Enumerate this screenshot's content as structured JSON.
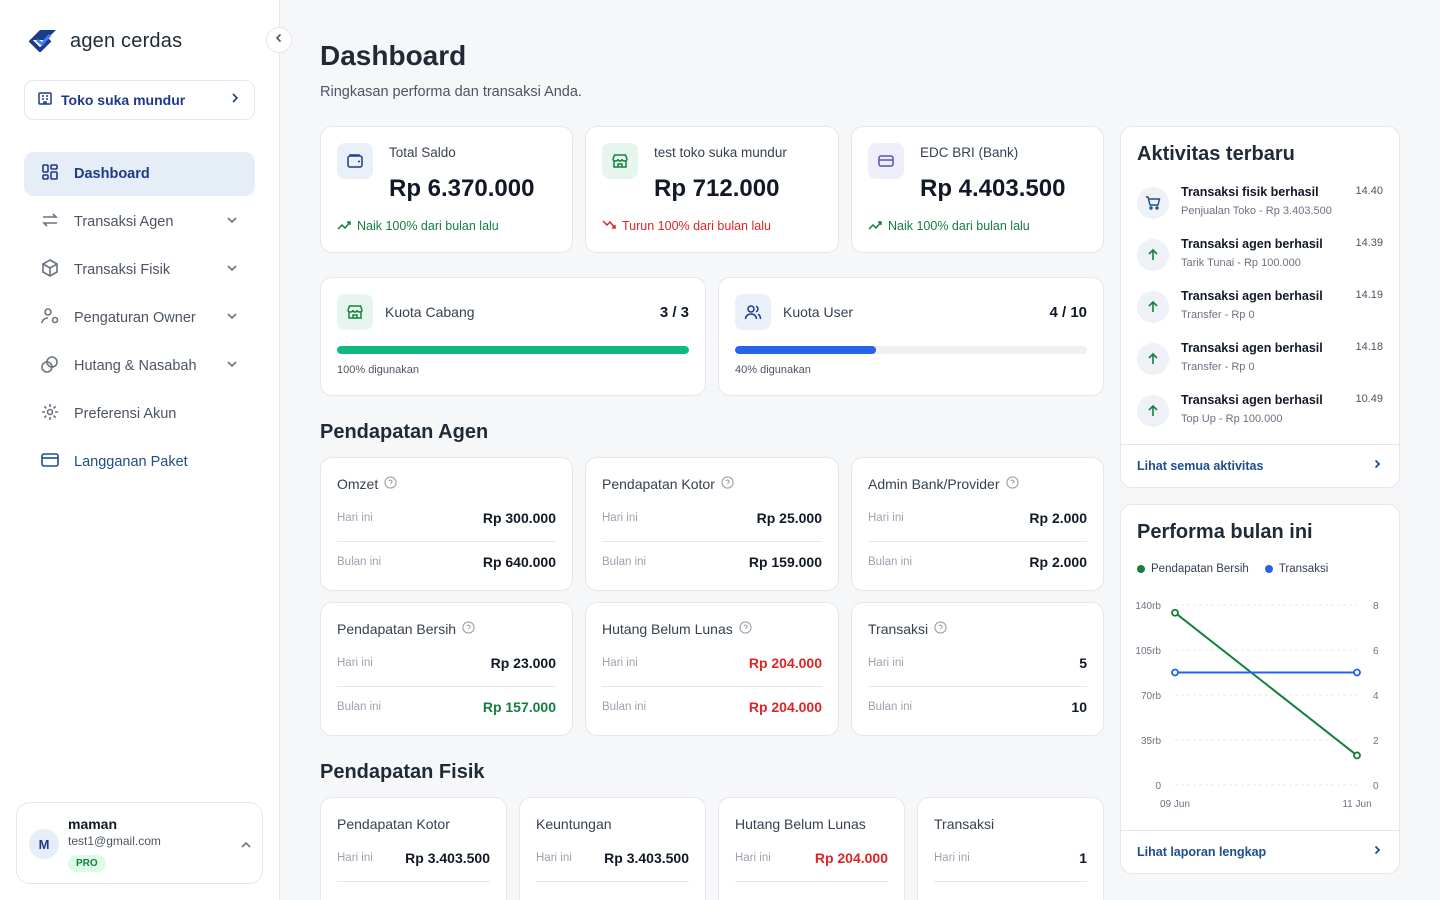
{
  "brand": {
    "name": "agen cerdas"
  },
  "store": {
    "label": "Toko suka mundur"
  },
  "nav": {
    "items": [
      {
        "label": "Dashboard",
        "icon": "grid-icon"
      },
      {
        "label": "Transaksi Agen",
        "icon": "swap-icon"
      },
      {
        "label": "Transaksi Fisik",
        "icon": "box-icon"
      },
      {
        "label": "Pengaturan Owner",
        "icon": "user-cog-icon"
      },
      {
        "label": "Hutang & Nasabah",
        "icon": "coins-icon"
      },
      {
        "label": "Preferensi Akun",
        "icon": "gear-icon"
      },
      {
        "label": "Langganan Paket",
        "icon": "card-icon"
      }
    ]
  },
  "user": {
    "initial": "M",
    "name": "maman",
    "email": "test1@gmail.com",
    "plan": "PRO"
  },
  "header": {
    "title": "Dashboard",
    "subtitle": "Ringkasan performa dan transaksi Anda."
  },
  "stats": [
    {
      "title": "Total Saldo",
      "value": "Rp 6.370.000",
      "trend": "Naik 100% dari bulan lalu"
    },
    {
      "title": "test toko suka mundur",
      "value": "Rp 712.000",
      "trend": "Turun 100% dari bulan lalu"
    },
    {
      "title": "EDC BRI (Bank)",
      "value": "Rp 4.403.500",
      "trend": "Naik 100% dari bulan lalu"
    }
  ],
  "quota": [
    {
      "title": "Kuota Cabang",
      "count": "3 / 3",
      "used": "100% digunakan",
      "fraction": 1.0
    },
    {
      "title": "Kuota User",
      "count": "4 / 10",
      "used": "40% digunakan",
      "fraction": 0.4
    }
  ],
  "agen": {
    "title": "Pendapatan Agen",
    "cards": [
      {
        "title": "Omzet",
        "today_label": "Hari ini",
        "today": "Rp 300.000",
        "month_label": "Bulan ini",
        "month": "Rp 640.000"
      },
      {
        "title": "Pendapatan Kotor",
        "today_label": "Hari ini",
        "today": "Rp 25.000",
        "month_label": "Bulan ini",
        "month": "Rp 159.000"
      },
      {
        "title": "Admin Bank/Provider",
        "today_label": "Hari ini",
        "today": "Rp 2.000",
        "month_label": "Bulan ini",
        "month": "Rp 2.000"
      },
      {
        "title": "Pendapatan Bersih",
        "today_label": "Hari ini",
        "today": "Rp 23.000",
        "month_label": "Bulan ini",
        "month": "Rp 157.000"
      },
      {
        "title": "Hutang Belum Lunas",
        "today_label": "Hari ini",
        "today": "Rp 204.000",
        "month_label": "Bulan ini",
        "month": "Rp 204.000"
      },
      {
        "title": "Transaksi",
        "today_label": "Hari ini",
        "today": "5",
        "month_label": "Bulan ini",
        "month": "10"
      }
    ]
  },
  "fisik": {
    "title": "Pendapatan Fisik",
    "cards": [
      {
        "title": "Pendapatan Kotor",
        "today_label": "Hari ini",
        "today": "Rp 3.403.500"
      },
      {
        "title": "Keuntungan",
        "today_label": "Hari ini",
        "today": "Rp 3.403.500"
      },
      {
        "title": "Hutang Belum Lunas",
        "today_label": "Hari ini",
        "today": "Rp 204.000"
      },
      {
        "title": "Transaksi",
        "today_label": "Hari ini",
        "today": "1"
      }
    ]
  },
  "activity": {
    "title": "Aktivitas terbaru",
    "items": [
      {
        "title": "Transaksi fisik berhasil",
        "sub": "Penjualan Toko - Rp 3.403.500",
        "time": "14.40",
        "icon": "cart-icon"
      },
      {
        "title": "Transaksi agen berhasil",
        "sub": "Tarik Tunai - Rp 100.000",
        "time": "14.39",
        "icon": "arrow-up-icon"
      },
      {
        "title": "Transaksi agen berhasil",
        "sub": "Transfer - Rp 0",
        "time": "14.19",
        "icon": "arrow-up-icon"
      },
      {
        "title": "Transaksi agen berhasil",
        "sub": "Transfer - Rp 0",
        "time": "14.18",
        "icon": "arrow-up-icon"
      },
      {
        "title": "Transaksi agen berhasil",
        "sub": "Top Up - Rp 100.000",
        "time": "10.49",
        "icon": "arrow-up-icon"
      }
    ],
    "link": "Lihat semua aktivitas"
  },
  "performance": {
    "title": "Performa bulan ini",
    "link": "Lihat laporan lengkap"
  },
  "chart_data": {
    "type": "line",
    "title": "Performa bulan ini",
    "x": [
      "09 Jun",
      "11 Jun"
    ],
    "series": [
      {
        "name": "Pendapatan Bersih",
        "values": [
          134000,
          23000
        ],
        "axis": "left",
        "color": "#15803d"
      },
      {
        "name": "Transaksi",
        "values": [
          5,
          5
        ],
        "axis": "right",
        "color": "#2563eb"
      }
    ],
    "y_left": {
      "ticks": [
        "0",
        "35rb",
        "70rb",
        "105rb",
        "140rb"
      ],
      "range": [
        0,
        140000
      ]
    },
    "y_right": {
      "ticks": [
        "0",
        "2",
        "4",
        "6",
        "8"
      ],
      "range": [
        0,
        8
      ]
    },
    "grid": true,
    "legend": "top-left"
  },
  "colors": {
    "primary": "#1e3a8a",
    "green": "#15803d",
    "red": "#dc2626",
    "bar_green": "#10b981",
    "bar_blue": "#2563eb"
  }
}
